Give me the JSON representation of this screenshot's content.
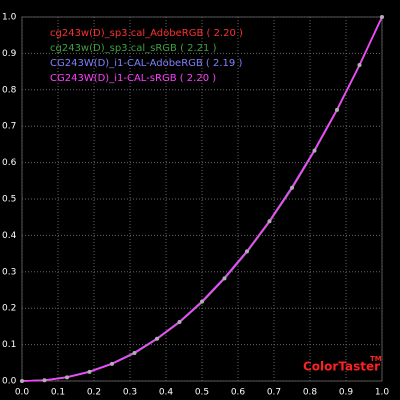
{
  "chart_data": {
    "type": "line",
    "x": [
      0,
      0.0625,
      0.125,
      0.1875,
      0.25,
      0.3125,
      0.375,
      0.4375,
      0.5,
      0.5625,
      0.625,
      0.6875,
      0.75,
      0.8125,
      0.875,
      0.9375,
      1
    ],
    "series": [
      {
        "name": "cg243w(D)_sp3.cal_AdobeRGB ( 2.20 )",
        "color": "#ff3030",
        "values": [
          0,
          0.002,
          0.01,
          0.025,
          0.047,
          0.077,
          0.116,
          0.162,
          0.218,
          0.282,
          0.356,
          0.439,
          0.531,
          0.633,
          0.745,
          0.868,
          1
        ]
      },
      {
        "name": "cg243w(D)_sp3.cal_sRGB ( 2.21 )",
        "color": "#40a040",
        "values": [
          0,
          0.002,
          0.01,
          0.025,
          0.047,
          0.076,
          0.115,
          0.161,
          0.216,
          0.281,
          0.354,
          0.437,
          0.529,
          0.632,
          0.744,
          0.867,
          1
        ]
      },
      {
        "name": "CG243W(D)_i1-CAL-AdobeRGB ( 2.19 )",
        "color": "#8080ff",
        "values": [
          0,
          0.002,
          0.011,
          0.026,
          0.048,
          0.078,
          0.117,
          0.163,
          0.219,
          0.284,
          0.357,
          0.44,
          0.533,
          0.635,
          0.746,
          0.868,
          1
        ]
      },
      {
        "name": "CG243W(D)_i1-CAL-sRGB ( 2.20 )",
        "color": "#ff40ff",
        "values": [
          0,
          0.002,
          0.01,
          0.025,
          0.047,
          0.077,
          0.116,
          0.162,
          0.218,
          0.282,
          0.356,
          0.439,
          0.531,
          0.633,
          0.745,
          0.868,
          1
        ]
      }
    ],
    "marker_color": "#b0b0b0",
    "xlim": [
      0,
      1
    ],
    "ylim": [
      0,
      1
    ],
    "xticks": [
      {
        "value": 0,
        "label": "0.0"
      },
      0.1,
      0.2,
      0.3,
      0.4,
      0.5,
      0.6,
      0.7,
      0.8,
      0.9,
      {
        "value": 1,
        "label": "1.0"
      }
    ],
    "yticks": [
      {
        "value": 0,
        "label": "0.0"
      },
      0.1,
      0.2,
      0.3,
      0.4,
      0.5,
      0.6,
      0.7,
      0.8,
      0.9,
      {
        "value": 1,
        "label": "1.0"
      }
    ],
    "grid": true,
    "brand": "ColorTaster",
    "brand_mark": "TM"
  }
}
